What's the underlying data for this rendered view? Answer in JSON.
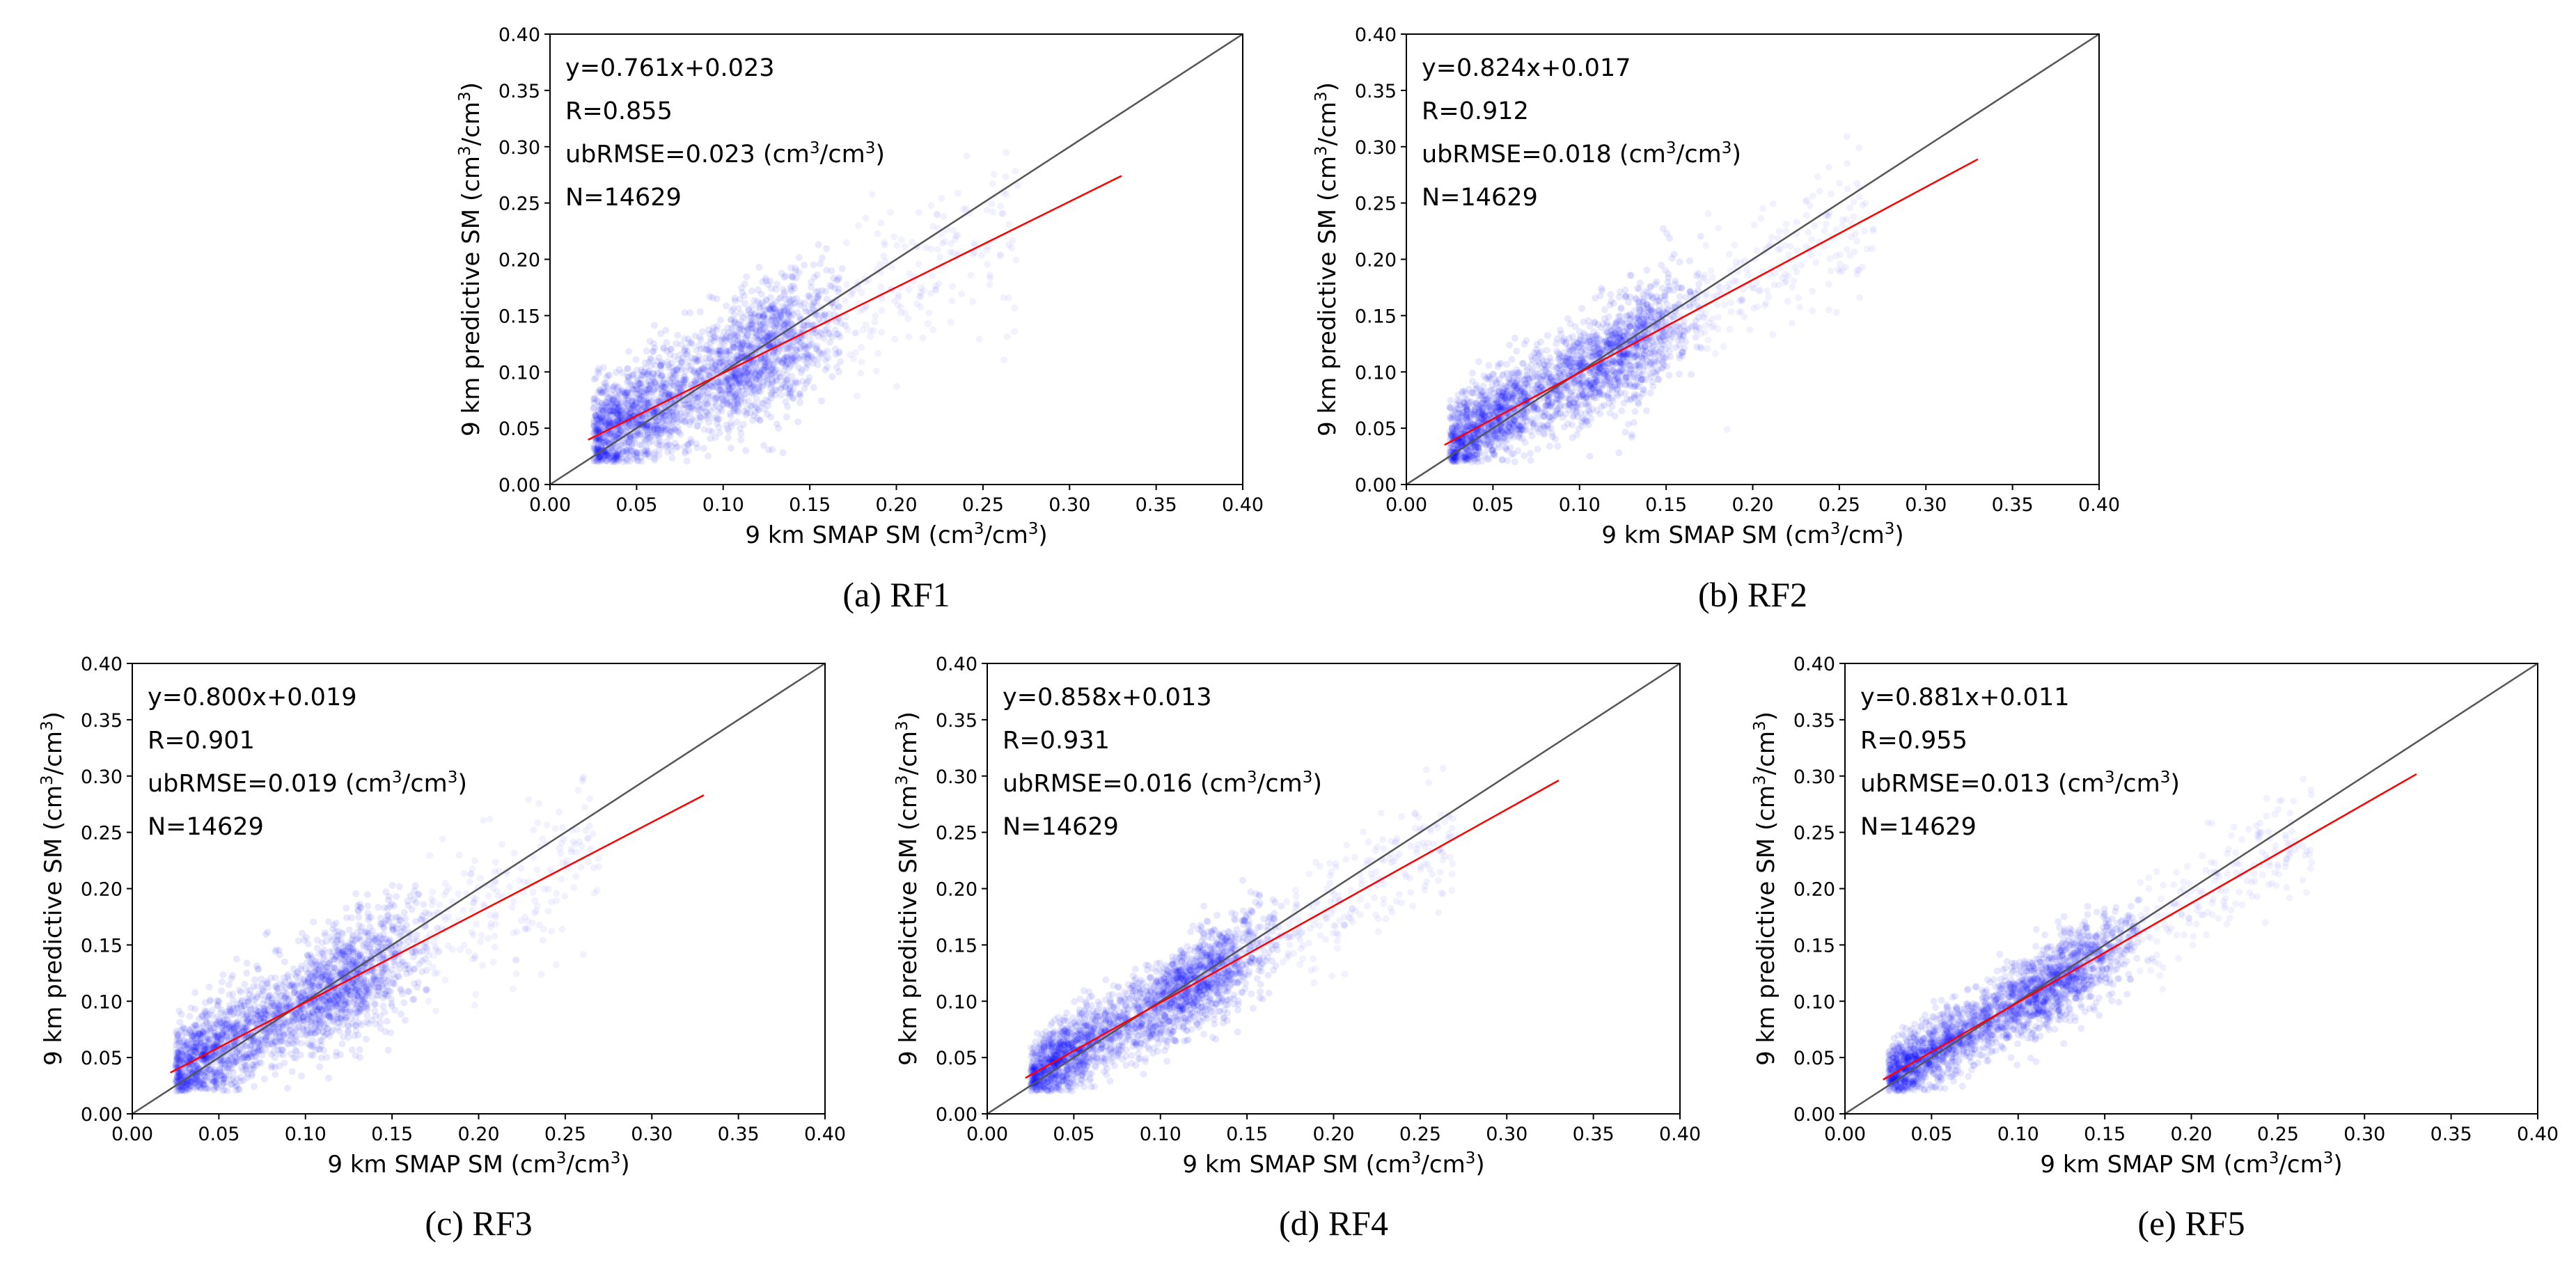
{
  "chart_data": [
    {
      "type": "scatter",
      "panel": "RF1",
      "caption": "(a) RF1",
      "xlabel": "9 km SMAP SM (cm3/cm3)",
      "ylabel": "9 km predictive SM (cm3/cm3)",
      "xlim": [
        0.0,
        0.4
      ],
      "ylim": [
        0.0,
        0.4
      ],
      "xticks": [
        "0.00",
        "0.05",
        "0.10",
        "0.15",
        "0.20",
        "0.25",
        "0.30",
        "0.35",
        "0.40"
      ],
      "yticks": [
        "0.00",
        "0.05",
        "0.10",
        "0.15",
        "0.20",
        "0.25",
        "0.30",
        "0.35",
        "0.40"
      ],
      "annotations": {
        "equation": "y=0.761x+0.023",
        "r": "R=0.855",
        "ubrmse": "ubRMSE=0.023 (cm3/cm3)",
        "n": "N=14629"
      },
      "fit": {
        "slope": 0.761,
        "intercept": 0.023,
        "x_range": [
          0.022,
          0.33
        ]
      },
      "one_to_one": true,
      "point_color": "#0000ff",
      "fit_color": "#ff0000",
      "identity_color": "#555555"
    },
    {
      "type": "scatter",
      "panel": "RF2",
      "caption": "(b) RF2",
      "xlabel": "9 km SMAP SM (cm3/cm3)",
      "ylabel": "9 km predictive SM (cm3/cm3)",
      "xlim": [
        0.0,
        0.4
      ],
      "ylim": [
        0.0,
        0.4
      ],
      "xticks": [
        "0.00",
        "0.05",
        "0.10",
        "0.15",
        "0.20",
        "0.25",
        "0.30",
        "0.35",
        "0.40"
      ],
      "yticks": [
        "0.00",
        "0.05",
        "0.10",
        "0.15",
        "0.20",
        "0.25",
        "0.30",
        "0.35",
        "0.40"
      ],
      "annotations": {
        "equation": "y=0.824x+0.017",
        "r": "R=0.912",
        "ubrmse": "ubRMSE=0.018 (cm3/cm3)",
        "n": "N=14629"
      },
      "fit": {
        "slope": 0.824,
        "intercept": 0.017,
        "x_range": [
          0.022,
          0.33
        ]
      },
      "one_to_one": true,
      "point_color": "#0000ff",
      "fit_color": "#ff0000",
      "identity_color": "#555555"
    },
    {
      "type": "scatter",
      "panel": "RF3",
      "caption": "(c) RF3",
      "xlabel": "9 km SMAP SM (cm3/cm3)",
      "ylabel": "9 km predictive SM (cm3/cm3)",
      "xlim": [
        0.0,
        0.4
      ],
      "ylim": [
        0.0,
        0.4
      ],
      "xticks": [
        "0.00",
        "0.05",
        "0.10",
        "0.15",
        "0.20",
        "0.25",
        "0.30",
        "0.35",
        "0.40"
      ],
      "yticks": [
        "0.00",
        "0.05",
        "0.10",
        "0.15",
        "0.20",
        "0.25",
        "0.30",
        "0.35",
        "0.40"
      ],
      "annotations": {
        "equation": "y=0.800x+0.019",
        "r": "R=0.901",
        "ubrmse": "ubRMSE=0.019 (cm3/cm3)",
        "n": "N=14629"
      },
      "fit": {
        "slope": 0.8,
        "intercept": 0.019,
        "x_range": [
          0.022,
          0.33
        ]
      },
      "one_to_one": true,
      "point_color": "#0000ff",
      "fit_color": "#ff0000",
      "identity_color": "#555555"
    },
    {
      "type": "scatter",
      "panel": "RF4",
      "caption": "(d) RF4",
      "xlabel": "9 km SMAP SM (cm3/cm3)",
      "ylabel": "9 km predictive SM (cm3/cm3)",
      "xlim": [
        0.0,
        0.4
      ],
      "ylim": [
        0.0,
        0.4
      ],
      "xticks": [
        "0.00",
        "0.05",
        "0.10",
        "0.15",
        "0.20",
        "0.25",
        "0.30",
        "0.35",
        "0.40"
      ],
      "yticks": [
        "0.00",
        "0.05",
        "0.10",
        "0.15",
        "0.20",
        "0.25",
        "0.30",
        "0.35",
        "0.40"
      ],
      "annotations": {
        "equation": "y=0.858x+0.013",
        "r": "R=0.931",
        "ubrmse": "ubRMSE=0.016 (cm3/cm3)",
        "n": "N=14629"
      },
      "fit": {
        "slope": 0.858,
        "intercept": 0.013,
        "x_range": [
          0.022,
          0.33
        ]
      },
      "one_to_one": true,
      "point_color": "#0000ff",
      "fit_color": "#ff0000",
      "identity_color": "#555555"
    },
    {
      "type": "scatter",
      "panel": "RF5",
      "caption": "(e) RF5",
      "xlabel": "9 km SMAP SM (cm3/cm3)",
      "ylabel": "9 km predictive SM (cm3/cm3)",
      "xlim": [
        0.0,
        0.4
      ],
      "ylim": [
        0.0,
        0.4
      ],
      "xticks": [
        "0.00",
        "0.05",
        "0.10",
        "0.15",
        "0.20",
        "0.25",
        "0.30",
        "0.35",
        "0.40"
      ],
      "yticks": [
        "0.00",
        "0.05",
        "0.10",
        "0.15",
        "0.20",
        "0.25",
        "0.30",
        "0.35",
        "0.40"
      ],
      "annotations": {
        "equation": "y=0.881x+0.011",
        "r": "R=0.955",
        "ubrmse": "ubRMSE=0.013 (cm3/cm3)",
        "n": "N=14629"
      },
      "fit": {
        "slope": 0.881,
        "intercept": 0.011,
        "x_range": [
          0.022,
          0.33
        ]
      },
      "one_to_one": true,
      "point_color": "#0000ff",
      "fit_color": "#ff0000",
      "identity_color": "#555555"
    }
  ]
}
